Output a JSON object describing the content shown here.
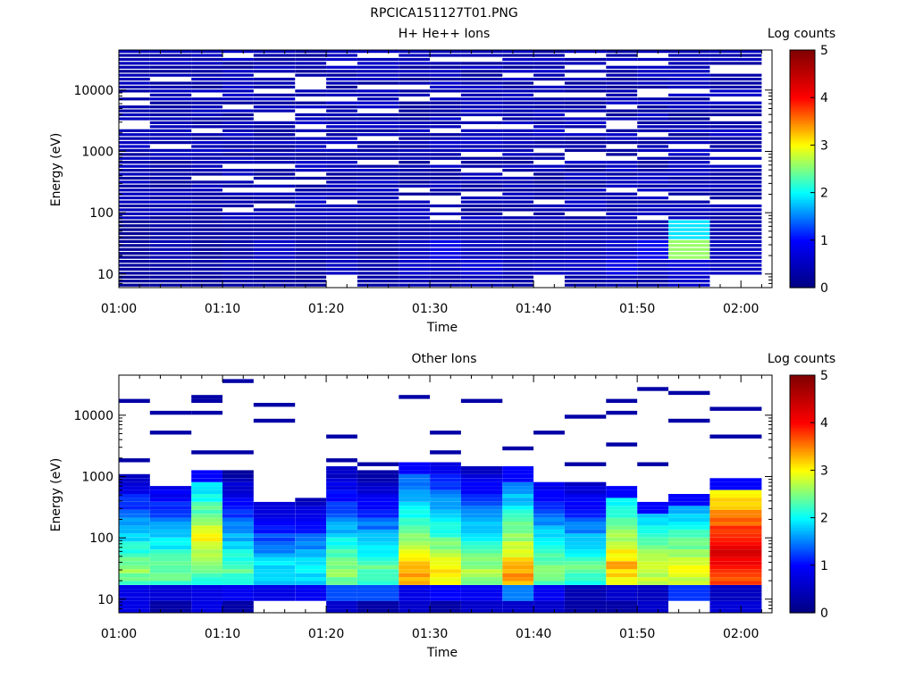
{
  "figure_title": "RPCICA151127T01.PNG",
  "colors": {
    "colormap": [
      "#000080",
      "#0000ff",
      "#00ffff",
      "#ffff00",
      "#ff0000",
      "#800000"
    ],
    "background": "#ffffff",
    "axis": "#000000"
  },
  "chart_data": [
    {
      "type": "heatmap",
      "title": "H+ He++ Ions",
      "xlabel": "Time",
      "ylabel": "Energy (eV)",
      "y_scale": "log",
      "x_range": [
        "01:00",
        "02:03"
      ],
      "ylim": [
        6,
        45000
      ],
      "x_ticks": [
        "01:00",
        "01:10",
        "01:20",
        "01:30",
        "01:40",
        "01:50",
        "02:00"
      ],
      "y_ticks": [
        "10",
        "100",
        "1000",
        "10000"
      ],
      "colorbar": {
        "label": "Log counts",
        "range": [
          0,
          5
        ],
        "ticks": [
          "0",
          "1",
          "2",
          "3",
          "4",
          "5"
        ]
      },
      "time_bins": [
        "01:00",
        "01:03",
        "01:07",
        "01:10",
        "01:13",
        "01:17",
        "01:20",
        "01:23",
        "01:27",
        "01:30",
        "01:33",
        "01:37",
        "01:40",
        "01:43",
        "01:47",
        "01:50",
        "01:53",
        "01:57"
      ],
      "low_energy_profile": [
        [
          0.2,
          0.25,
          0.2,
          0.15
        ],
        [
          0.25,
          0.3,
          0.4,
          0.3
        ],
        [
          0.2,
          0.3,
          0.2,
          0.25
        ],
        [
          0.3,
          0.4,
          0.3,
          0.3
        ],
        [
          0.25,
          0.35,
          0.55,
          0.3
        ],
        [
          0.2,
          0.3,
          0.35,
          0.3
        ],
        [
          0.0,
          0.5,
          0.4,
          0.35
        ],
        [
          0.3,
          0.35,
          0.3,
          0.3
        ],
        [
          0.4,
          0.6,
          0.5,
          0.35
        ],
        [
          0.3,
          0.5,
          0.8,
          0.4
        ],
        [
          0.4,
          0.7,
          0.5,
          0.4
        ],
        [
          0.3,
          0.45,
          0.4,
          0.35
        ],
        [
          0.0,
          0.5,
          0.4,
          0.35
        ],
        [
          0.3,
          0.55,
          0.45,
          0.4
        ],
        [
          0.4,
          0.8,
          0.6,
          0.45
        ],
        [
          0.3,
          0.55,
          0.85,
          0.4
        ],
        [
          0.6,
          0.7,
          2.6,
          1.9
        ],
        [
          0.0,
          0.5,
          0.5,
          0.4
        ]
      ],
      "typical_high_energy_value": 0.4
    },
    {
      "type": "heatmap",
      "title": "Other Ions",
      "xlabel": "Time",
      "ylabel": "Energy (eV)",
      "y_scale": "log",
      "x_range": [
        "01:00",
        "02:03"
      ],
      "ylim": [
        6,
        45000
      ],
      "x_ticks": [
        "01:00",
        "01:10",
        "01:20",
        "01:30",
        "01:40",
        "01:50",
        "02:00"
      ],
      "y_ticks": [
        "10",
        "100",
        "1000",
        "10000"
      ],
      "colorbar": {
        "label": "Log counts",
        "range": [
          0,
          5
        ],
        "ticks": [
          "0",
          "1",
          "2",
          "3",
          "4",
          "5"
        ]
      },
      "time_bins": [
        "01:00",
        "01:03",
        "01:07",
        "01:10",
        "01:13",
        "01:17",
        "01:20",
        "01:23",
        "01:27",
        "01:30",
        "01:33",
        "01:37",
        "01:40",
        "01:43",
        "01:47",
        "01:50",
        "01:53",
        "01:57"
      ],
      "main_band_top_eV": [
        1100,
        700,
        1300,
        1300,
        400,
        450,
        1400,
        1300,
        1700,
        1700,
        1500,
        1400,
        800,
        800,
        700,
        400,
        550,
        1000
      ],
      "peak_value": [
        2.6,
        2.5,
        3.0,
        2.4,
        2.0,
        2.0,
        2.6,
        2.4,
        3.4,
        3.1,
        2.7,
        3.4,
        2.6,
        2.4,
        3.3,
        2.9,
        3.0,
        4.3
      ],
      "peak_energy_eV": [
        30,
        30,
        90,
        30,
        30,
        30,
        30,
        30,
        25,
        25,
        30,
        25,
        30,
        30,
        35,
        30,
        30,
        55
      ],
      "band_10eV_value": [
        0.8,
        0.7,
        0.8,
        0.9,
        0.8,
        0.9,
        1.3,
        1.3,
        0.8,
        1.0,
        0.9,
        1.5,
        0.9,
        0.4,
        0.6,
        0.5,
        1.2,
        0.5
      ],
      "band_8eV_value": [
        0.8,
        0.3,
        0.8,
        0.3,
        0.0,
        0.0,
        0.6,
        0.3,
        0.6,
        0.3,
        0.6,
        0.6,
        0.6,
        0.3,
        0.3,
        0.6,
        0.0,
        0.7
      ],
      "sparse_high_energy_points_eV": [
        [
          1900,
          17000
        ],
        [
          5500,
          11000
        ],
        [
          2400,
          11000,
          17000,
          20000
        ],
        [
          2300,
          38000
        ],
        [
          7600,
          15000
        ],
        [],
        [
          1900,
          4800
        ],
        [
          1700
        ],
        [
          19000
        ],
        [
          2300,
          5500
        ],
        [
          18000
        ],
        [
          2800
        ],
        [
          5000
        ],
        [
          1600,
          10000
        ],
        [
          3300,
          11000,
          16000
        ],
        [
          1500,
          26000
        ],
        [
          8000,
          24000
        ],
        [
          4800,
          12000
        ]
      ]
    }
  ]
}
